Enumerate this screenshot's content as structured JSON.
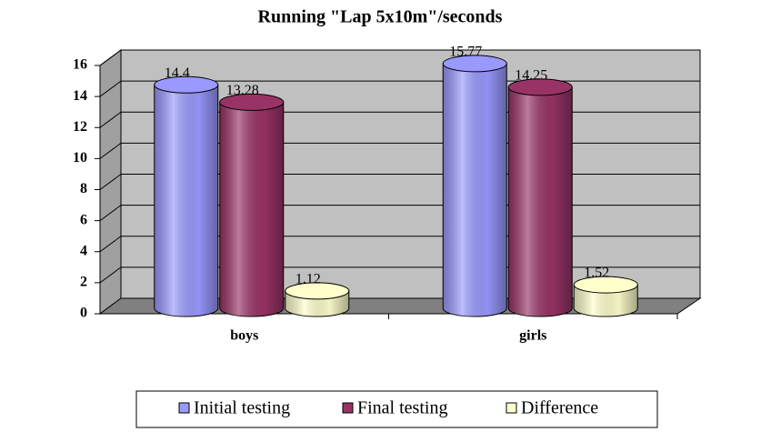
{
  "chart_data": {
    "type": "bar",
    "title": "Running  \"Lap 5x10m\"/seconds",
    "categories": [
      "boys",
      "girls"
    ],
    "series": [
      {
        "name": "Initial testing",
        "color": "#9999ff",
        "values": [
          14.4,
          15.77
        ]
      },
      {
        "name": "Final testing",
        "color": "#993366",
        "values": [
          13.28,
          14.25
        ]
      },
      {
        "name": "Difference",
        "color": "#ffffcc",
        "values": [
          1.12,
          1.52
        ]
      }
    ],
    "ylim": [
      0,
      16
    ],
    "yticks": [
      0,
      2,
      4,
      6,
      8,
      10,
      12,
      14,
      16
    ],
    "grid": true
  }
}
